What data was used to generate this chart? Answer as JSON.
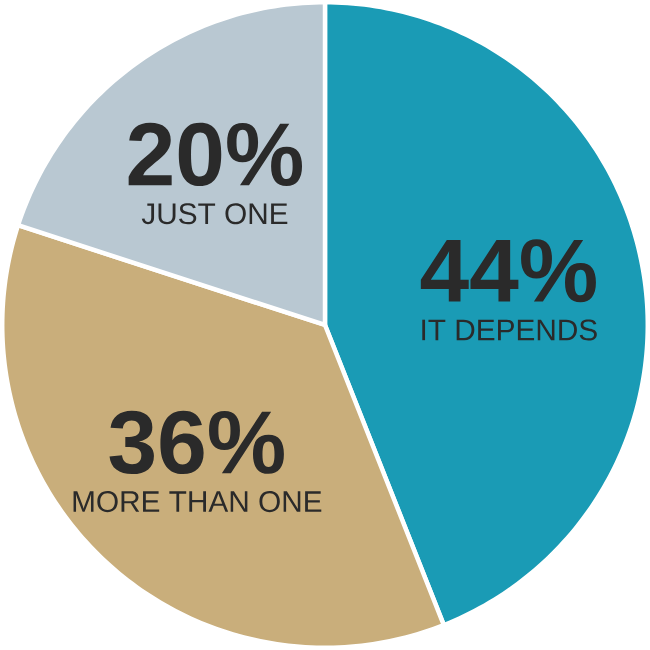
{
  "chart_data": {
    "type": "pie",
    "categories": [
      "IT DEPENDS",
      "MORE THAN ONE",
      "JUST ONE"
    ],
    "values": [
      44,
      36,
      20
    ],
    "value_labels": [
      "44%",
      "36%",
      "20%"
    ],
    "colors": [
      "#1a9bb5",
      "#c9ae7b",
      "#b9c8d2"
    ]
  }
}
